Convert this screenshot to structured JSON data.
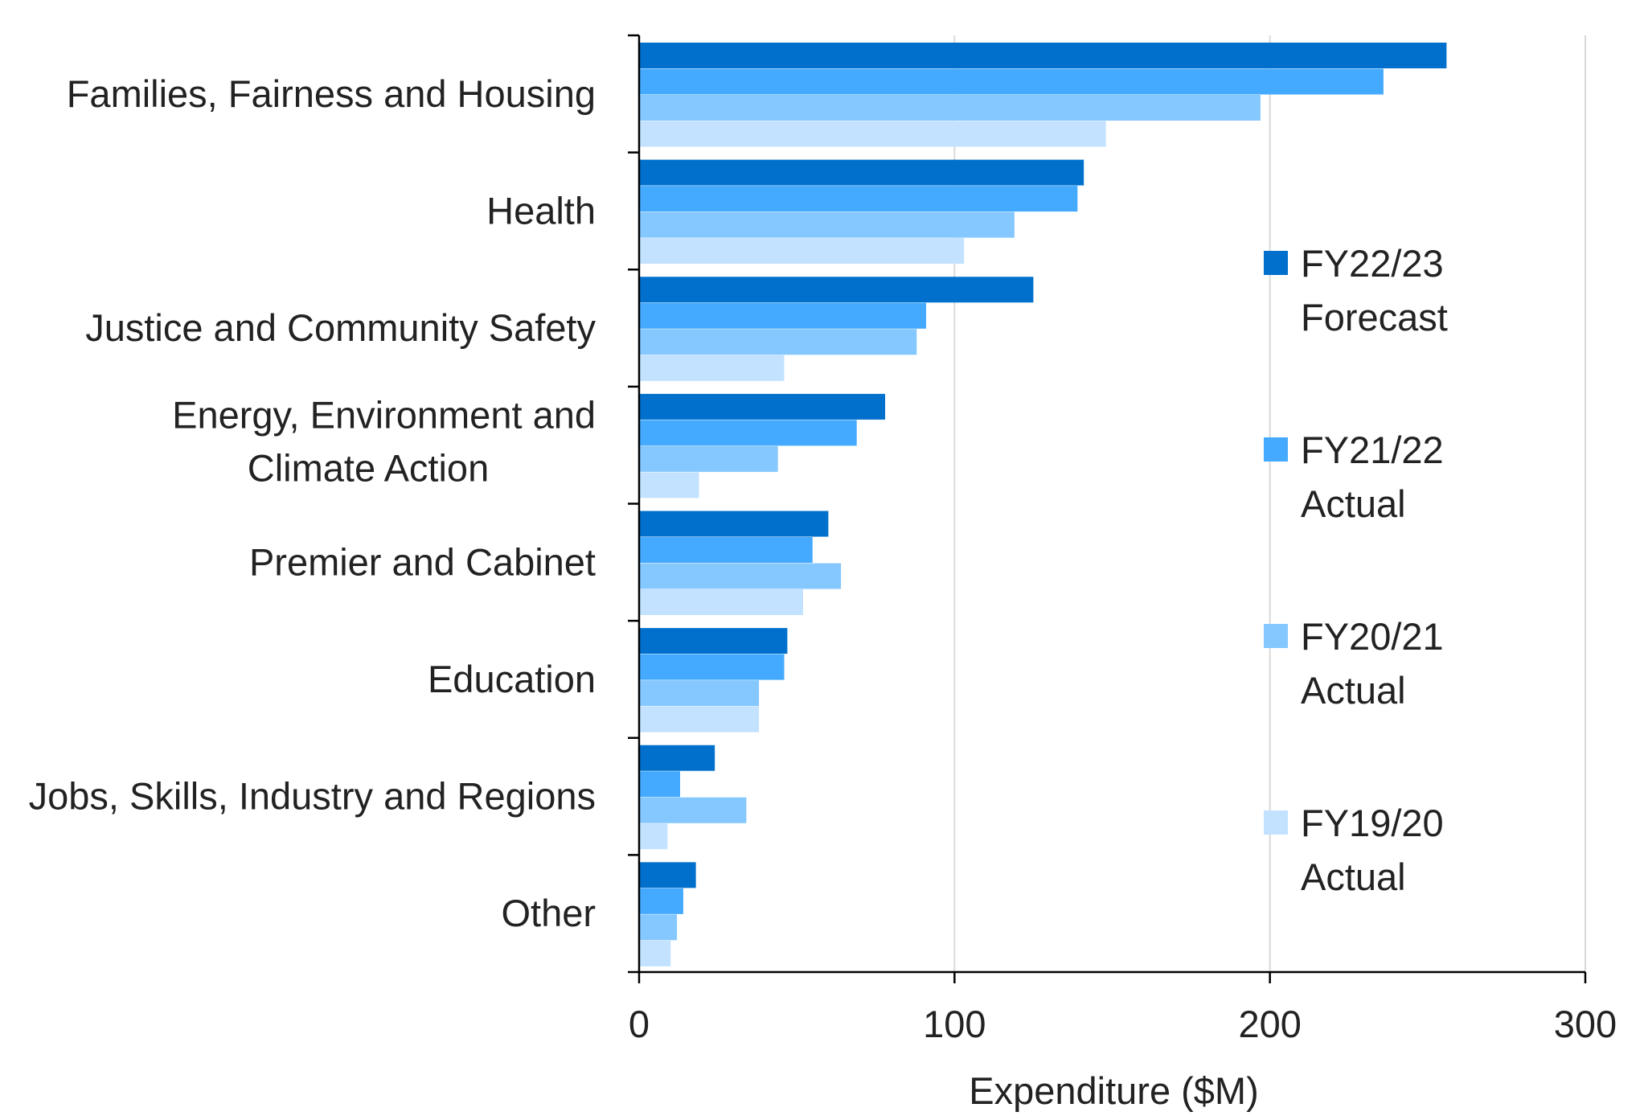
{
  "chart_data": {
    "type": "bar",
    "orientation": "horizontal",
    "title": "",
    "xlabel": "Expenditure ($M)",
    "ylabel": "",
    "xlim": [
      0,
      300
    ],
    "xticks": [
      0,
      100,
      200,
      300
    ],
    "grid": "vertical",
    "legend_position": "right",
    "categories": [
      [
        "Families, Fairness and Housing"
      ],
      [
        "Health"
      ],
      [
        "Justice and Community Safety"
      ],
      [
        "Energy, Environment and",
        "Climate Action"
      ],
      [
        "Premier and Cabinet"
      ],
      [
        "Education"
      ],
      [
        "Jobs, Skills, Industry and Regions"
      ],
      [
        "Other"
      ]
    ],
    "series": [
      {
        "name": [
          "FY22/23",
          "Forecast"
        ],
        "color": "#0070cc",
        "values": [
          256,
          141,
          125,
          78,
          60,
          47,
          24,
          18
        ]
      },
      {
        "name": [
          "FY21/22",
          "Actual"
        ],
        "color": "#44aaff",
        "values": [
          236,
          139,
          91,
          69,
          55,
          46,
          13,
          14
        ]
      },
      {
        "name": [
          "FY20/21",
          "Actual"
        ],
        "color": "#85c7ff",
        "values": [
          197,
          119,
          88,
          44,
          64,
          38,
          34,
          12
        ]
      },
      {
        "name": [
          "FY19/20",
          "Actual"
        ],
        "color": "#c2e2ff",
        "values": [
          148,
          103,
          46,
          19,
          52,
          38,
          9,
          10
        ]
      }
    ]
  }
}
